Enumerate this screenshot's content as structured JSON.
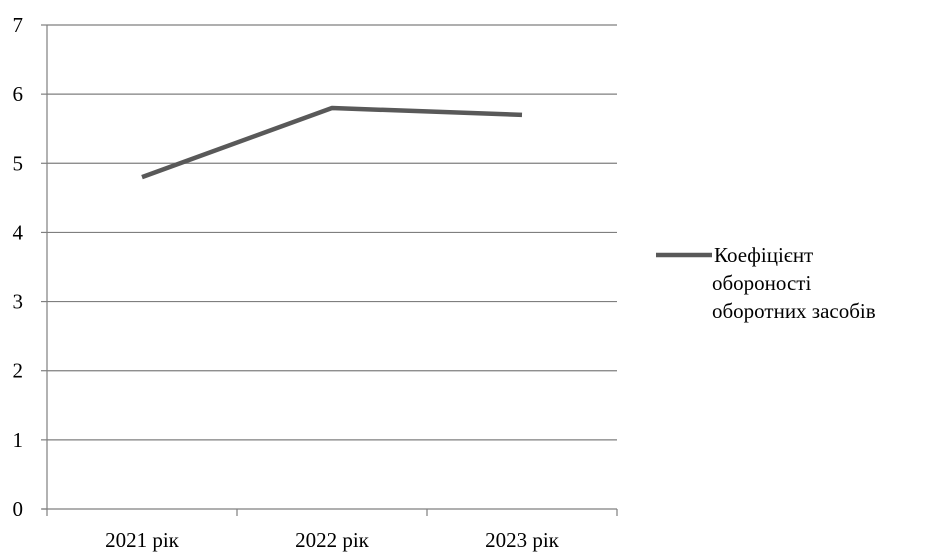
{
  "chart_data": {
    "type": "line",
    "categories": [
      "2021 рік",
      "2022 рік",
      "2023 рік"
    ],
    "series": [
      {
        "name": "Коефіцієнт оборотності оборотних засобів",
        "name_lines": [
          "Коефіцієнт",
          "обороності",
          "оборотних засобів"
        ],
        "values": [
          4.8,
          5.8,
          5.7
        ],
        "color": "#595959"
      }
    ],
    "ylim": [
      0,
      7
    ],
    "yticks": [
      0,
      1,
      2,
      3,
      4,
      5,
      6,
      7
    ],
    "grid": true,
    "legend": "right",
    "title": "",
    "xlabel": "",
    "ylabel": ""
  }
}
